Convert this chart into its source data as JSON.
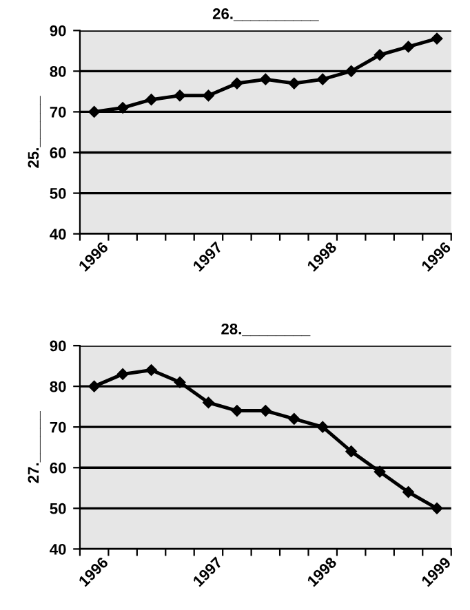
{
  "chart_data": [
    {
      "type": "line",
      "title": "26.__________",
      "ylabel": "25.______",
      "categories": [
        "1996",
        null,
        null,
        null,
        "1997",
        null,
        null,
        null,
        "1998",
        null,
        null,
        null,
        "1996"
      ],
      "series": [
        {
          "color": "#000000",
          "values": [
            70,
            71,
            73,
            74,
            74,
            77,
            78,
            77,
            78,
            80,
            84,
            86,
            88
          ]
        }
      ],
      "ylim": [
        40,
        90
      ],
      "yticks": [
        40,
        50,
        60,
        70,
        80,
        90
      ],
      "grid": "y",
      "marker": "diamond",
      "line_style": "solid",
      "legend": false
    },
    {
      "type": "line",
      "title": "28.________",
      "ylabel": "27.______",
      "categories": [
        "1996",
        null,
        null,
        null,
        "1997",
        null,
        null,
        null,
        "1998",
        null,
        null,
        null,
        "1999"
      ],
      "series": [
        {
          "color": "#000000",
          "values": [
            80,
            83,
            84,
            81,
            76,
            74,
            74,
            72,
            70,
            64,
            59,
            54,
            50
          ]
        }
      ],
      "ylim": [
        40,
        90
      ],
      "yticks": [
        40,
        50,
        60,
        70,
        80,
        90
      ],
      "grid": "y",
      "marker": "diamond",
      "line_style": "solid",
      "legend": false
    }
  ]
}
